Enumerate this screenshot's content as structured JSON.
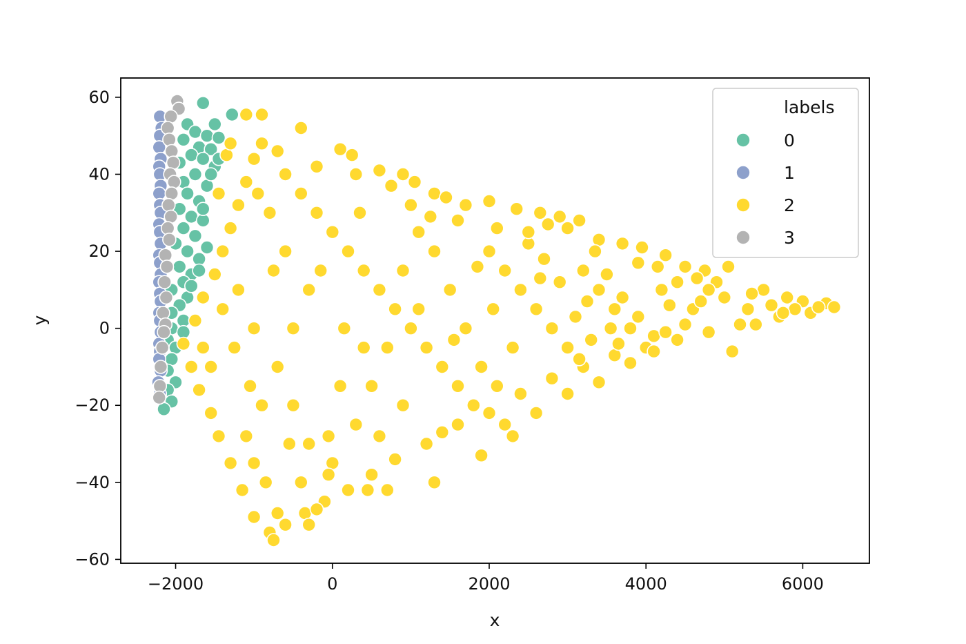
{
  "chart_data": {
    "type": "scatter",
    "xlabel": "x",
    "ylabel": "y",
    "xlim": [
      -2700,
      6850
    ],
    "ylim": [
      -61,
      65
    ],
    "xticks": [
      -2000,
      0,
      2000,
      4000,
      6000
    ],
    "yticks": [
      -60,
      -40,
      -20,
      0,
      20,
      40,
      60
    ],
    "xtick_labels": [
      "−2000",
      "0",
      "2000",
      "4000",
      "6000"
    ],
    "ytick_labels": [
      "−60",
      "−40",
      "−20",
      "0",
      "20",
      "40",
      "60"
    ],
    "grid": false,
    "legend": {
      "title": "labels",
      "placement": "top-right",
      "entries": [
        "0",
        "1",
        "2",
        "3"
      ]
    },
    "colors": {
      "0": "#66c2a5",
      "1": "#8da0cb",
      "2": "#ffd92f",
      "3": "#b3b3b3"
    },
    "series": [
      {
        "name": "0",
        "points": [
          [
            -1650,
            58.5
          ],
          [
            -1280,
            55.5
          ],
          [
            -1500,
            53
          ],
          [
            -1850,
            53
          ],
          [
            -1750,
            51
          ],
          [
            -1600,
            50
          ],
          [
            -1450,
            49.5
          ],
          [
            -1900,
            49
          ],
          [
            -1700,
            47
          ],
          [
            -1550,
            46.5
          ],
          [
            -1800,
            45
          ],
          [
            -1650,
            44
          ],
          [
            -1950,
            43
          ],
          [
            -1500,
            42
          ],
          [
            -1750,
            40
          ],
          [
            -1900,
            38
          ],
          [
            -1600,
            37
          ],
          [
            -1850,
            35
          ],
          [
            -1700,
            33
          ],
          [
            -1950,
            31
          ],
          [
            -1800,
            29
          ],
          [
            -1650,
            28
          ],
          [
            -1900,
            26
          ],
          [
            -1750,
            24
          ],
          [
            -2000,
            22
          ],
          [
            -1850,
            20
          ],
          [
            -1700,
            18
          ],
          [
            -1950,
            16
          ],
          [
            -1800,
            14
          ],
          [
            -1900,
            12
          ],
          [
            -2050,
            10
          ],
          [
            -1850,
            8
          ],
          [
            -1950,
            6
          ],
          [
            -2050,
            4
          ],
          [
            -1900,
            2
          ],
          [
            -2050,
            0
          ],
          [
            -1900,
            -1
          ],
          [
            -2100,
            -3
          ],
          [
            -2000,
            -5
          ],
          [
            -2050,
            -8
          ],
          [
            -2100,
            -11
          ],
          [
            -2000,
            -14
          ],
          [
            -2100,
            -16
          ],
          [
            -2050,
            -19
          ],
          [
            -2150,
            -21
          ],
          [
            -1600,
            21
          ],
          [
            -1650,
            31
          ],
          [
            -1550,
            40
          ],
          [
            -1450,
            44
          ],
          [
            -1700,
            15
          ],
          [
            -1800,
            11
          ]
        ]
      },
      {
        "name": "1",
        "points": [
          [
            -2200,
            55
          ],
          [
            -2180,
            52
          ],
          [
            -2200,
            50
          ],
          [
            -2210,
            47
          ],
          [
            -2190,
            44
          ],
          [
            -2210,
            42
          ],
          [
            -2200,
            40
          ],
          [
            -2190,
            37
          ],
          [
            -2210,
            35
          ],
          [
            -2200,
            32
          ],
          [
            -2190,
            30
          ],
          [
            -2210,
            27
          ],
          [
            -2200,
            25
          ],
          [
            -2190,
            22
          ],
          [
            -2210,
            19
          ],
          [
            -2200,
            17
          ],
          [
            -2190,
            14
          ],
          [
            -2210,
            12
          ],
          [
            -2200,
            9
          ],
          [
            -2190,
            7
          ],
          [
            -2210,
            4
          ],
          [
            -2200,
            2
          ],
          [
            -2190,
            -1
          ],
          [
            -2210,
            -4
          ],
          [
            -2200,
            -6
          ],
          [
            -2210,
            -8
          ],
          [
            -2190,
            -11
          ],
          [
            -2220,
            -14
          ],
          [
            -2200,
            -17
          ]
        ]
      },
      {
        "name": "3",
        "points": [
          [
            -1980,
            59
          ],
          [
            -1960,
            57
          ],
          [
            -2060,
            55
          ],
          [
            -2100,
            52
          ],
          [
            -2080,
            49
          ],
          [
            -2050,
            46
          ],
          [
            -2030,
            43
          ],
          [
            -2070,
            40
          ],
          [
            -2020,
            38
          ],
          [
            -2050,
            35
          ],
          [
            -2090,
            32
          ],
          [
            -2060,
            29
          ],
          [
            -2100,
            26
          ],
          [
            -2080,
            23
          ],
          [
            -2130,
            19
          ],
          [
            -2110,
            16
          ],
          [
            -2140,
            12
          ],
          [
            -2120,
            8
          ],
          [
            -2160,
            4
          ],
          [
            -2130,
            1
          ],
          [
            -2150,
            -1
          ],
          [
            -2170,
            -5
          ],
          [
            -2190,
            -10
          ],
          [
            -2200,
            -15
          ],
          [
            -2210,
            -18
          ]
        ]
      },
      {
        "name": "2",
        "points": [
          [
            -1100,
            55.5
          ],
          [
            -900,
            55.5
          ],
          [
            -400,
            52
          ],
          [
            100,
            46.5
          ],
          [
            -200,
            42
          ],
          [
            300,
            40
          ],
          [
            600,
            41
          ],
          [
            900,
            40
          ],
          [
            1050,
            38
          ],
          [
            1300,
            35
          ],
          [
            1450,
            34
          ],
          [
            1700,
            32
          ],
          [
            2000,
            33
          ],
          [
            2350,
            31
          ],
          [
            2650,
            30
          ],
          [
            2900,
            29
          ],
          [
            3150,
            28
          ],
          [
            3000,
            26
          ],
          [
            3400,
            23
          ],
          [
            3700,
            22
          ],
          [
            3950,
            21
          ],
          [
            4250,
            19
          ],
          [
            4500,
            16
          ],
          [
            4750,
            15
          ],
          [
            5050,
            16
          ],
          [
            4900,
            12
          ],
          [
            5500,
            10
          ],
          [
            5800,
            8
          ],
          [
            6000,
            7
          ],
          [
            6300,
            6.5
          ],
          [
            6400,
            5.5
          ],
          [
            6100,
            4
          ],
          [
            5700,
            3
          ],
          [
            5200,
            1
          ],
          [
            4800,
            -1
          ],
          [
            4400,
            -3
          ],
          [
            4000,
            -5
          ],
          [
            3600,
            -7
          ],
          [
            3200,
            -10
          ],
          [
            2800,
            -13
          ],
          [
            2400,
            -17
          ],
          [
            2000,
            -22
          ],
          [
            1600,
            -25
          ],
          [
            1200,
            -30
          ],
          [
            800,
            -34
          ],
          [
            500,
            -38
          ],
          [
            200,
            -42
          ],
          [
            -100,
            -45
          ],
          [
            -350,
            -48
          ],
          [
            -600,
            -51
          ],
          [
            -800,
            -53
          ],
          [
            -750,
            -55
          ],
          [
            -1000,
            -49
          ],
          [
            -1150,
            -42
          ],
          [
            -1300,
            -35
          ],
          [
            -1450,
            -28
          ],
          [
            -1550,
            -22
          ],
          [
            -1700,
            -16
          ],
          [
            -1800,
            -10
          ],
          [
            -1900,
            -4
          ],
          [
            -1750,
            2
          ],
          [
            -1650,
            8
          ],
          [
            -1500,
            14
          ],
          [
            -1400,
            20
          ],
          [
            -1300,
            26
          ],
          [
            -1200,
            32
          ],
          [
            -1100,
            38
          ],
          [
            -1000,
            44
          ],
          [
            -900,
            48
          ],
          [
            -700,
            46
          ],
          [
            -600,
            40
          ],
          [
            -400,
            35
          ],
          [
            -200,
            30
          ],
          [
            0,
            25
          ],
          [
            200,
            20
          ],
          [
            400,
            15
          ],
          [
            600,
            10
          ],
          [
            800,
            5
          ],
          [
            1000,
            0
          ],
          [
            1200,
            -5
          ],
          [
            1400,
            -10
          ],
          [
            1600,
            -15
          ],
          [
            1800,
            -20
          ],
          [
            2000,
            20
          ],
          [
            2200,
            15
          ],
          [
            2400,
            10
          ],
          [
            2600,
            5
          ],
          [
            2800,
            0
          ],
          [
            3000,
            -5
          ],
          [
            3200,
            15
          ],
          [
            3400,
            10
          ],
          [
            3600,
            5
          ],
          [
            3800,
            0
          ],
          [
            4200,
            10
          ],
          [
            4600,
            5
          ],
          [
            5000,
            8
          ],
          [
            -300,
            10
          ],
          [
            -500,
            0
          ],
          [
            -700,
            -10
          ],
          [
            -900,
            -20
          ],
          [
            -1100,
            -28
          ],
          [
            -500,
            -20
          ],
          [
            -300,
            -30
          ],
          [
            0,
            -35
          ],
          [
            300,
            -25
          ],
          [
            500,
            -15
          ],
          [
            700,
            -5
          ],
          [
            900,
            15
          ],
          [
            1100,
            25
          ],
          [
            1300,
            20
          ],
          [
            1500,
            10
          ],
          [
            1700,
            0
          ],
          [
            1900,
            -10
          ],
          [
            2100,
            -15
          ],
          [
            2300,
            -5
          ],
          [
            2500,
            22
          ],
          [
            2700,
            18
          ],
          [
            2900,
            12
          ],
          [
            3100,
            3
          ],
          [
            3300,
            -3
          ],
          [
            3500,
            14
          ],
          [
            3700,
            8
          ],
          [
            3900,
            3
          ],
          [
            4100,
            -2
          ],
          [
            4300,
            6
          ],
          [
            4500,
            1
          ],
          [
            4700,
            7
          ],
          [
            5300,
            5
          ],
          [
            5600,
            6
          ],
          [
            -1200,
            10
          ],
          [
            -1000,
            0
          ],
          [
            -800,
            30
          ],
          [
            -600,
            20
          ],
          [
            -400,
            -40
          ],
          [
            -200,
            -47
          ],
          [
            450,
            -42
          ],
          [
            1900,
            -33
          ],
          [
            1300,
            -40
          ],
          [
            700,
            -42
          ],
          [
            -50,
            -28
          ],
          [
            150,
            0
          ],
          [
            350,
            30
          ],
          [
            -150,
            15
          ],
          [
            1100,
            5
          ],
          [
            2200,
            -25
          ],
          [
            2600,
            -22
          ],
          [
            3000,
            -17
          ],
          [
            3400,
            -14
          ],
          [
            3800,
            -9
          ],
          [
            4100,
            -6
          ],
          [
            4400,
            12
          ],
          [
            4800,
            10
          ],
          [
            5100,
            -6
          ],
          [
            5400,
            1
          ],
          [
            5900,
            5
          ],
          [
            1600,
            28
          ],
          [
            2100,
            26
          ],
          [
            2500,
            25
          ],
          [
            1850,
            16
          ],
          [
            2650,
            13
          ],
          [
            3250,
            7
          ],
          [
            3550,
            0
          ],
          [
            4150,
            16
          ],
          [
            -1350,
            45
          ],
          [
            -950,
            35
          ],
          [
            -750,
            15
          ],
          [
            -550,
            -30
          ],
          [
            -1050,
            -15
          ],
          [
            -1250,
            -5
          ],
          [
            -1400,
            5
          ],
          [
            -1550,
            -10
          ],
          [
            -1650,
            -5
          ],
          [
            -1450,
            35
          ],
          [
            -1300,
            48
          ],
          [
            250,
            45
          ],
          [
            750,
            37
          ],
          [
            1000,
            32
          ],
          [
            1250,
            29
          ],
          [
            2750,
            27
          ],
          [
            3350,
            20
          ],
          [
            3900,
            17
          ],
          [
            4650,
            13
          ],
          [
            5350,
            9
          ],
          [
            5750,
            4
          ],
          [
            6200,
            5.5
          ],
          [
            900,
            -20
          ],
          [
            1400,
            -27
          ],
          [
            2300,
            -28
          ],
          [
            600,
            -28
          ],
          [
            -850,
            -40
          ],
          [
            -1000,
            -35
          ],
          [
            -700,
            -48
          ],
          [
            -300,
            -51
          ],
          [
            -50,
            -38
          ],
          [
            100,
            -15
          ],
          [
            400,
            -5
          ],
          [
            1550,
            -3
          ],
          [
            2050,
            5
          ],
          [
            3150,
            -8
          ],
          [
            3650,
            -4
          ],
          [
            4250,
            -1
          ]
        ]
      }
    ]
  }
}
